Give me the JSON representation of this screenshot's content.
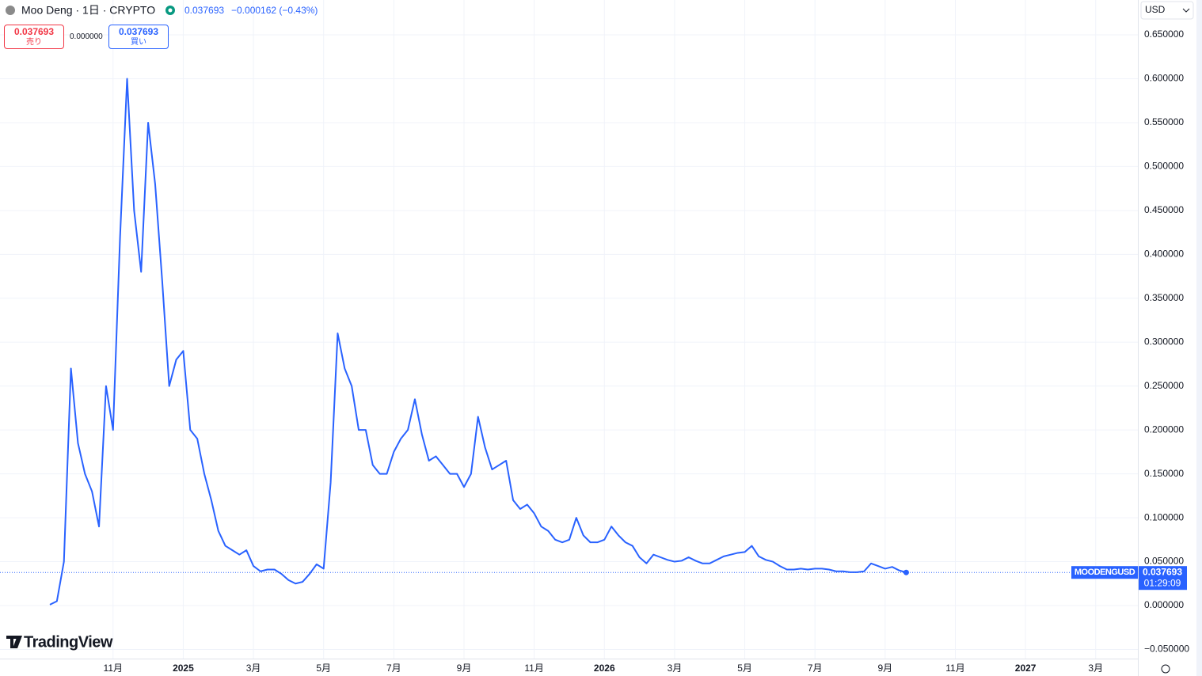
{
  "header": {
    "symbol": "Moo Deng · 1日 · CRYPTO",
    "price": "0.037693",
    "change": "−0.000162 (−0.43%)",
    "sell_price": "0.037693",
    "sell_label": "売り",
    "spread": "0.000000",
    "buy_price": "0.037693",
    "buy_label": "買い",
    "currency": "USD",
    "countdown": "01:29:09",
    "logo": "TradingView"
  },
  "chart_data": {
    "type": "line",
    "categories": [
      null,
      null,
      null,
      null,
      null,
      null,
      null,
      null,
      null,
      "11月",
      null,
      null,
      null,
      null,
      null,
      null,
      null,
      null,
      null,
      "2025",
      null,
      null,
      null,
      null,
      null,
      null,
      null,
      null,
      null,
      "3月",
      null,
      null,
      null,
      null,
      null,
      null,
      null,
      null,
      null,
      "5月",
      null,
      null,
      null,
      null,
      null,
      null,
      null,
      null,
      null,
      "7月",
      null,
      null,
      null,
      null,
      null,
      null,
      null,
      null,
      null,
      "9月",
      null,
      null,
      null,
      null,
      null,
      null,
      null,
      null,
      null,
      "11月",
      null,
      null,
      null,
      null,
      null,
      null,
      null,
      null,
      null,
      "2026",
      null,
      null,
      null,
      null,
      null,
      null,
      null,
      null,
      null,
      "3月",
      null,
      null,
      null,
      null,
      null,
      null,
      null,
      null,
      null,
      "5月",
      null,
      null,
      null,
      null,
      null,
      null,
      null,
      null,
      null,
      "7月",
      null,
      null,
      null,
      null,
      null,
      null,
      null,
      null,
      null,
      "9月",
      null,
      null,
      null,
      null,
      null,
      null,
      null,
      null,
      null,
      "11月",
      null,
      null,
      null,
      null,
      null,
      null,
      null,
      null,
      null,
      "2027",
      null,
      null,
      null,
      null,
      null,
      null,
      null,
      null,
      null,
      "3月",
      null,
      null,
      null,
      null,
      null,
      null
    ],
    "series": [
      {
        "name": "MOODENGUSD",
        "color": "#2962ff",
        "values": [
          0.001,
          0.005,
          0.05,
          0.27,
          0.185,
          0.15,
          0.13,
          0.09,
          0.25,
          0.2,
          0.42,
          0.6,
          0.45,
          0.38,
          0.55,
          0.48,
          0.37,
          0.25,
          0.28,
          0.29,
          0.2,
          0.19,
          0.15,
          0.12,
          0.085,
          0.068,
          0.063,
          0.058,
          0.063,
          0.045,
          0.039,
          0.041,
          0.041,
          0.036,
          0.029,
          0.025,
          0.027,
          0.036,
          0.047,
          0.042,
          0.14,
          0.31,
          0.27,
          0.25,
          0.2,
          0.2,
          0.16,
          0.15,
          0.15,
          0.175,
          0.19,
          0.2,
          0.235,
          0.195,
          0.165,
          0.17,
          0.16,
          0.15,
          0.15,
          0.135,
          0.15,
          0.215,
          0.18,
          0.155,
          0.16,
          0.165,
          0.12,
          0.11,
          0.115,
          0.105,
          0.09,
          0.085,
          0.075,
          0.072,
          0.075,
          0.1,
          0.08,
          0.072,
          0.072,
          0.075,
          0.09,
          0.08,
          0.072,
          0.068,
          0.055,
          0.048,
          0.058,
          0.055,
          0.052,
          0.05,
          0.051,
          0.055,
          0.051,
          0.048,
          0.048,
          0.052,
          0.056,
          0.058,
          0.06,
          0.061,
          0.068,
          0.056,
          0.052,
          0.05,
          0.045,
          0.041,
          0.041,
          0.042,
          0.041,
          0.042,
          0.042,
          0.041,
          0.039,
          0.039,
          0.038,
          0.038,
          0.039,
          0.048,
          0.045,
          0.042,
          0.044,
          0.04,
          0.037693,
          null,
          null,
          null,
          null,
          null,
          null,
          null,
          null,
          null,
          null,
          null,
          null,
          null,
          null,
          null,
          null,
          null,
          null,
          null,
          null,
          null,
          null,
          null,
          null,
          null,
          null,
          null,
          null,
          null,
          null,
          null,
          null,
          null
        ]
      }
    ],
    "last_price": 0.037693,
    "ylim": [
      -0.0604,
      0.6897
    ],
    "yticks": [
      {
        "value": -0.05,
        "label": "−0.050000"
      },
      {
        "value": 0,
        "label": "0.000000"
      },
      {
        "value": 0.05,
        "label": "0.050000"
      },
      {
        "value": 0.1,
        "label": "0.100000"
      },
      {
        "value": 0.15,
        "label": "0.150000"
      },
      {
        "value": 0.2,
        "label": "0.200000"
      },
      {
        "value": 0.25,
        "label": "0.250000"
      },
      {
        "value": 0.3,
        "label": "0.300000"
      },
      {
        "value": 0.35,
        "label": "0.350000"
      },
      {
        "value": 0.4,
        "label": "0.400000"
      },
      {
        "value": 0.45,
        "label": "0.450000"
      },
      {
        "value": 0.5,
        "label": "0.500000"
      },
      {
        "value": 0.55,
        "label": "0.550000"
      },
      {
        "value": 0.6,
        "label": "0.600000"
      },
      {
        "value": 0.65,
        "label": "0.650000"
      }
    ],
    "grid": true
  }
}
